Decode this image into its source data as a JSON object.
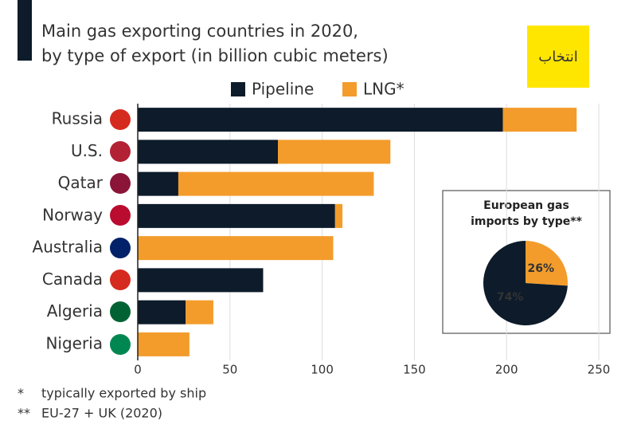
{
  "chart_data": [
    {
      "type": "stacked-bar-horizontal",
      "subtitle": [
        "Main gas exporting countries in 2020,",
        "by type of export (in billion cubic meters)"
      ],
      "categories": [
        "Russia",
        "U.S.",
        "Qatar",
        "Norway",
        "Australia",
        "Canada",
        "Algeria",
        "Nigeria"
      ],
      "series": [
        {
          "name": "Pipeline",
          "color": "#0d1b2a",
          "values": [
            198,
            76,
            22,
            107,
            0,
            68,
            26,
            0
          ]
        },
        {
          "name": "LNG*",
          "color": "#f39c2b",
          "values": [
            40,
            61,
            106,
            4,
            106,
            0,
            15,
            28
          ]
        }
      ],
      "xlim": [
        0,
        250
      ],
      "xticks": [
        0,
        50,
        100,
        150,
        200,
        250
      ],
      "grid": true,
      "legend": "top"
    },
    {
      "type": "pie",
      "title": "European gas imports by type**",
      "categories": [
        "LNG",
        "Pipeline"
      ],
      "values": [
        26,
        74
      ],
      "value_labels": [
        "26%",
        "74%"
      ],
      "colors": [
        "#f39c2b",
        "#0d1b2a"
      ]
    }
  ],
  "footnotes": [
    {
      "mark": "*",
      "text": "typically exported by ship"
    },
    {
      "mark": "**",
      "text": "EU-27 + UK (2020)"
    }
  ],
  "logo": "انتخاب"
}
